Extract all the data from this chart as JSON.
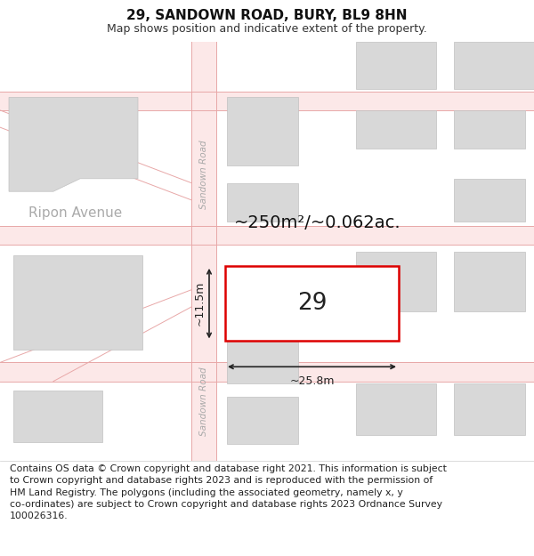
{
  "title": "29, SANDOWN ROAD, BURY, BL9 8HN",
  "subtitle": "Map shows position and indicative extent of the property.",
  "footer": "Contains OS data © Crown copyright and database right 2021. This information is subject\nto Crown copyright and database rights 2023 and is reproduced with the permission of\nHM Land Registry. The polygons (including the associated geometry, namely x, y\nco-ordinates) are subject to Crown copyright and database rights 2023 Ordnance Survey\n100026316.",
  "bg_color": "#ffffff",
  "road_fill": "#fce8e8",
  "road_line": "#e8a8a8",
  "building_fill": "#d8d8d8",
  "building_edge": "#c0c0c0",
  "highlight_red": "#dd0000",
  "highlight_fill": "#ffffff",
  "dim_color": "#222222",
  "street_color": "#aaaaaa",
  "ripon_color": "#aaaaaa",
  "area_text": "~250m²/~0.062ac.",
  "property_number": "29",
  "dim_width_label": "~25.8m",
  "dim_height_label": "~11.5m",
  "street_label": "Sandown Road",
  "ripon_label": "Ripon Avenue",
  "title_fontsize": 11,
  "subtitle_fontsize": 9,
  "footer_fontsize": 7.8
}
